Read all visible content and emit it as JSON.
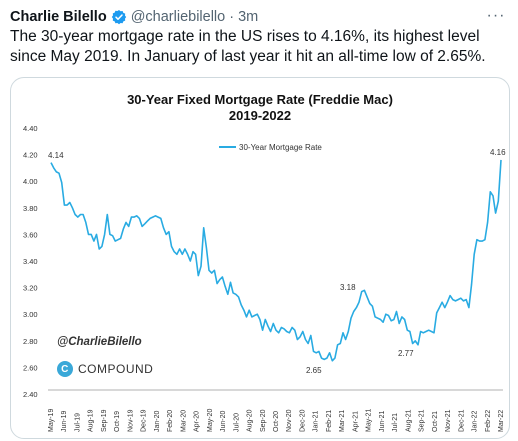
{
  "tweet": {
    "author": "Charlie Bilello",
    "handle": "@charliebilello",
    "separator": "·",
    "time": "3m",
    "more": "···",
    "text": "The 30-year mortgage rate in the US rises to 4.16%, its highest level since May 2019. In January of last year it hit an all-time low of 2.65%.",
    "verified_color": "#1d9bf0"
  },
  "chart_data": {
    "type": "line",
    "title": "30-Year Fixed Mortgage Rate (Freddie Mac)",
    "subtitle": "2019-2022",
    "ylim": [
      2.4,
      4.4
    ],
    "yticks": [
      "4.40",
      "4.20",
      "4.00",
      "3.80",
      "3.60",
      "3.40",
      "3.20",
      "3.00",
      "2.80",
      "2.60",
      "2.40"
    ],
    "xticks": [
      "May-19",
      "Jun-19",
      "Jul-19",
      "Aug-19",
      "Sep-19",
      "Oct-19",
      "Nov-19",
      "Dec-19",
      "Jan-20",
      "Feb-20",
      "Mar-20",
      "Apr-20",
      "May-20",
      "Jun-20",
      "Jul-20",
      "Aug-20",
      "Sep-20",
      "Oct-20",
      "Nov-20",
      "Dec-20",
      "Jan-21",
      "Feb-21",
      "Mar-21",
      "Apr-21",
      "May-21",
      "Jun-21",
      "Jul-21",
      "Aug-21",
      "Sep-21",
      "Oct-21",
      "Nov-21",
      "Dec-21",
      "Jan-22",
      "Feb-22",
      "Mar-22"
    ],
    "grid": false,
    "legend_position": "top-center",
    "line_color": "#29abe2",
    "series": [
      {
        "name": "30-Year Mortgage Rate",
        "values": [
          4.14,
          4.1,
          4.07,
          4.06,
          3.99,
          3.82,
          3.82,
          3.84,
          3.8,
          3.75,
          3.73,
          3.75,
          3.75,
          3.69,
          3.6,
          3.6,
          3.55,
          3.6,
          3.49,
          3.51,
          3.6,
          3.75,
          3.6,
          3.59,
          3.55,
          3.56,
          3.57,
          3.64,
          3.69,
          3.66,
          3.73,
          3.73,
          3.74,
          3.72,
          3.66,
          3.68,
          3.7,
          3.72,
          3.73,
          3.74,
          3.73,
          3.72,
          3.65,
          3.6,
          3.62,
          3.51,
          3.47,
          3.45,
          3.49,
          3.45,
          3.49,
          3.45,
          3.4,
          3.47,
          3.45,
          3.29,
          3.36,
          3.65,
          3.5,
          3.33,
          3.31,
          3.33,
          3.23,
          3.26,
          3.28,
          3.21,
          3.15,
          3.24,
          3.16,
          3.15,
          3.13,
          3.07,
          3.03,
          2.98,
          3.03,
          2.98,
          2.99,
          3.0,
          2.96,
          2.88,
          2.96,
          2.91,
          2.87,
          2.93,
          2.88,
          2.86,
          2.9,
          2.89,
          2.87,
          2.86,
          2.9,
          2.88,
          2.81,
          2.83,
          2.87,
          2.81,
          2.78,
          2.84,
          2.72,
          2.71,
          2.72,
          2.67,
          2.66,
          2.67,
          2.71,
          2.65,
          2.67,
          2.77,
          2.78,
          2.86,
          2.81,
          2.87,
          2.97,
          3.02,
          3.05,
          3.09,
          3.17,
          3.18,
          3.13,
          3.08,
          3.06,
          2.98,
          2.97,
          2.96,
          2.94,
          3.0,
          2.99,
          2.95,
          2.96,
          3.02,
          2.93,
          2.98,
          2.96,
          2.88,
          2.87,
          2.78,
          2.8,
          2.77,
          2.87,
          2.86,
          2.87,
          2.88,
          2.87,
          2.86,
          3.01,
          3.05,
          3.09,
          3.05,
          3.09,
          3.14,
          3.11,
          3.1,
          3.11,
          3.12,
          3.1,
          3.11,
          3.05,
          3.22,
          3.45,
          3.56,
          3.55,
          3.55,
          3.56,
          3.69,
          3.92,
          3.89,
          3.76,
          3.85,
          4.16
        ],
        "x_start": "May-19",
        "x_end": "Mar-22"
      }
    ],
    "annotations": [
      "4.14",
      "2.65",
      "3.18",
      "2.77",
      "4.16"
    ],
    "watermark": "@CharlieBilello",
    "brand": "COMPOUND"
  }
}
